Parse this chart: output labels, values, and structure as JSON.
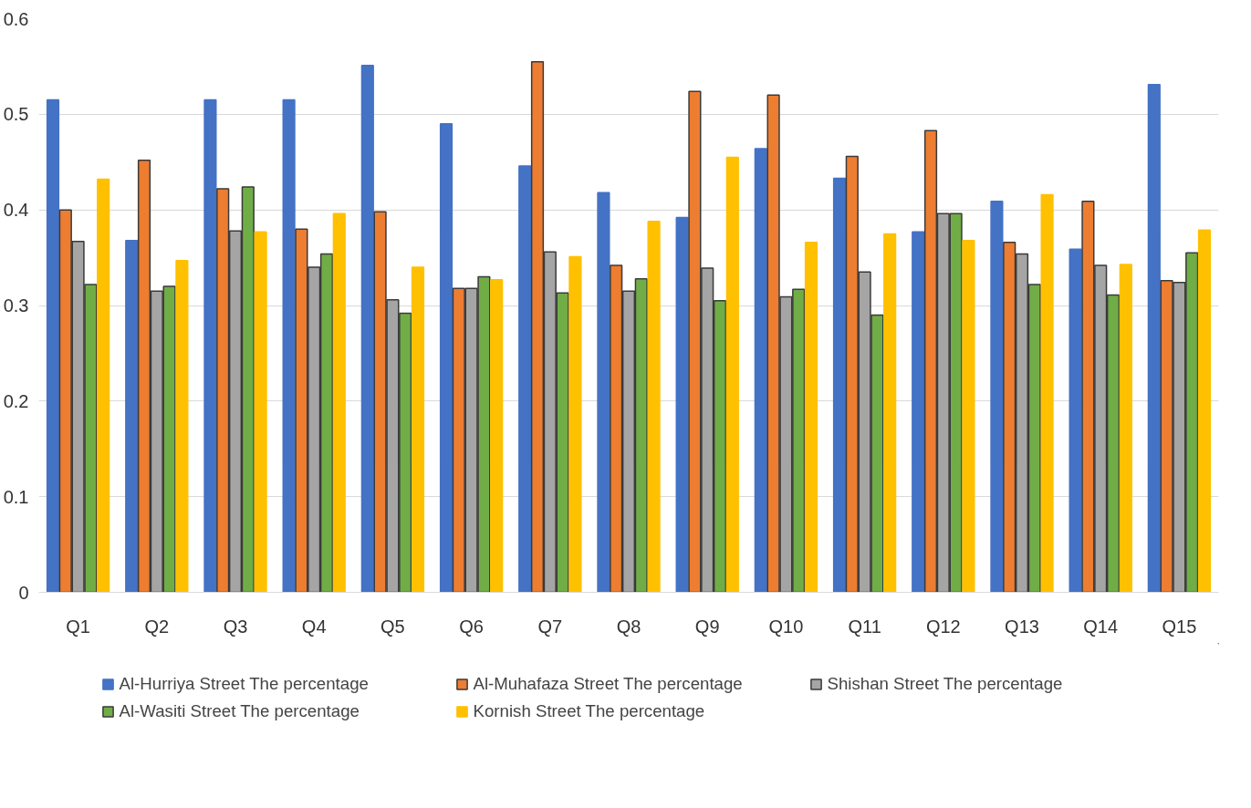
{
  "chart_data": {
    "type": "bar",
    "categories": [
      "Q1",
      "Q2",
      "Q3",
      "Q4",
      "Q5",
      "Q6",
      "Q7",
      "Q8",
      "Q9",
      "Q10",
      "Q11",
      "Q12",
      "Q13",
      "Q14",
      "Q15"
    ],
    "series": [
      {
        "name": "Al-Hurriya Street The percentage",
        "color": "#4472c4",
        "values": [
          0.515,
          0.368,
          0.515,
          0.515,
          0.551,
          0.49,
          0.446,
          0.418,
          0.392,
          0.464,
          0.433,
          0.377,
          0.409,
          0.359,
          0.531
        ]
      },
      {
        "name": "Al-Muhafaza Street The percentage",
        "color": "#ed7d31",
        "values": [
          0.4,
          0.452,
          0.422,
          0.38,
          0.398,
          0.318,
          0.555,
          0.342,
          0.524,
          0.52,
          0.456,
          0.483,
          0.366,
          0.409,
          0.326
        ]
      },
      {
        "name": "Shishan Street The percentage",
        "color": "#a5a5a5",
        "values": [
          0.367,
          0.315,
          0.378,
          0.34,
          0.306,
          0.318,
          0.356,
          0.315,
          0.339,
          0.309,
          0.335,
          0.396,
          0.354,
          0.342,
          0.324
        ]
      },
      {
        "name": "Al-Wasiti Street The percentage",
        "color": "#70ad47",
        "values": [
          0.322,
          0.32,
          0.424,
          0.354,
          0.292,
          0.33,
          0.313,
          0.328,
          0.305,
          0.317,
          0.29,
          0.396,
          0.322,
          0.311,
          0.355
        ]
      },
      {
        "name": "Kornish Street The percentage",
        "color": "#ffc000",
        "values": [
          0.432,
          0.347,
          0.377,
          0.396,
          0.34,
          0.327,
          0.351,
          0.388,
          0.455,
          0.366,
          0.375,
          0.368,
          0.416,
          0.343,
          0.379
        ]
      }
    ],
    "ylim": [
      0,
      0.6
    ],
    "yticks": [
      0,
      0.1,
      0.2,
      0.3,
      0.4,
      0.5,
      0.6
    ],
    "grid": "y",
    "legend": "bottom"
  }
}
